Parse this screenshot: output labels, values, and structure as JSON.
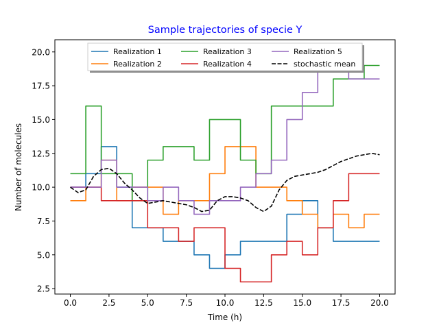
{
  "chart_data": {
    "type": "line",
    "title": "Sample trajectories of specie Y",
    "title_color": "#0000ff",
    "xlabel": "Time (h)",
    "ylabel": "Number of molecules",
    "xlim": [
      -1,
      21
    ],
    "ylim": [
      2.1,
      20.9
    ],
    "xticks": [
      0,
      2.5,
      5,
      7.5,
      10,
      12.5,
      15,
      17.5,
      20
    ],
    "xtick_labels": [
      "0.0",
      "2.5",
      "5.0",
      "7.5",
      "10.0",
      "12.5",
      "15.0",
      "17.5",
      "20.0"
    ],
    "yticks": [
      2.5,
      5,
      7.5,
      10,
      12.5,
      15,
      17.5,
      20
    ],
    "ytick_labels": [
      "2.5",
      "5.0",
      "7.5",
      "10.0",
      "12.5",
      "15.0",
      "17.5",
      "20.0"
    ],
    "grid": false,
    "legend_position": "top-center",
    "legend_columns": 3,
    "series": [
      {
        "name": "Realization 1",
        "color": "#1f77b4",
        "style": "steps-post",
        "x": [
          0,
          1,
          2,
          3,
          4,
          5,
          6,
          7,
          8,
          9,
          10,
          11,
          12,
          13,
          14,
          15,
          16,
          17,
          18,
          19,
          20
        ],
        "y": [
          10,
          11,
          13,
          10,
          7,
          7,
          6,
          6,
          5,
          4,
          5,
          6,
          6,
          6,
          8,
          9,
          7,
          6,
          6,
          6,
          6
        ]
      },
      {
        "name": "Realization 2",
        "color": "#ff7f0e",
        "style": "steps-post",
        "x": [
          0,
          1,
          2,
          3,
          4,
          5,
          6,
          7,
          8,
          9,
          10,
          11,
          12,
          13,
          14,
          15,
          16,
          17,
          18,
          19,
          20
        ],
        "y": [
          9,
          10,
          12,
          9,
          10,
          10,
          8,
          9,
          9,
          11,
          13,
          13,
          10,
          10,
          9,
          8,
          7,
          8,
          7,
          8,
          8
        ]
      },
      {
        "name": "Realization 3",
        "color": "#2ca02c",
        "style": "steps-post",
        "x": [
          0,
          1,
          2,
          3,
          4,
          5,
          6,
          7,
          8,
          9,
          10,
          11,
          12,
          13,
          14,
          15,
          16,
          17,
          18,
          19,
          20
        ],
        "y": [
          11,
          16,
          11,
          11,
          9,
          12,
          13,
          13,
          12,
          15,
          15,
          12,
          11,
          16,
          16,
          16,
          16,
          18,
          18,
          19,
          19
        ]
      },
      {
        "name": "Realization 4",
        "color": "#d62728",
        "style": "steps-post",
        "x": [
          0,
          1,
          2,
          3,
          4,
          5,
          6,
          7,
          8,
          9,
          10,
          11,
          12,
          13,
          14,
          15,
          16,
          17,
          18,
          19,
          20
        ],
        "y": [
          10,
          10,
          9,
          9,
          9,
          7,
          7,
          6,
          7,
          7,
          4,
          3,
          3,
          5,
          6,
          5,
          7,
          9,
          11,
          11,
          11
        ]
      },
      {
        "name": "Realization 5",
        "color": "#9467bd",
        "style": "steps-post",
        "x": [
          0,
          1,
          2,
          3,
          4,
          5,
          6,
          7,
          8,
          9,
          10,
          11,
          12,
          13,
          14,
          15,
          16,
          17,
          18,
          19,
          20
        ],
        "y": [
          10,
          10,
          12,
          10,
          10,
          9,
          10,
          9,
          8,
          9,
          9,
          10,
          11,
          12,
          15,
          17,
          19,
          19,
          18,
          18,
          18
        ]
      },
      {
        "name": "stochastic mean",
        "color": "#000000",
        "style": "dashed",
        "x": [
          0,
          0.5,
          1,
          1.5,
          2,
          2.5,
          3,
          3.5,
          4,
          4.5,
          5,
          5.5,
          6,
          6.5,
          7,
          7.5,
          8,
          8.5,
          9,
          9.5,
          10,
          10.5,
          11,
          11.5,
          12,
          12.5,
          13,
          13.5,
          14,
          14.5,
          15,
          15.5,
          16,
          16.5,
          17,
          17.5,
          18,
          18.5,
          19,
          19.5,
          20
        ],
        "y": [
          10,
          9.6,
          9.8,
          10.8,
          11.3,
          11.4,
          11,
          10.3,
          9.8,
          9.2,
          8.8,
          8.9,
          9,
          8.9,
          8.8,
          8.7,
          8.5,
          8.2,
          8.3,
          9,
          9.3,
          9.3,
          9.2,
          9,
          8.5,
          8.2,
          8.6,
          9.8,
          10.5,
          10.8,
          10.9,
          11,
          11.1,
          11.3,
          11.6,
          11.9,
          12.1,
          12.3,
          12.4,
          12.5,
          12.4
        ]
      }
    ]
  }
}
